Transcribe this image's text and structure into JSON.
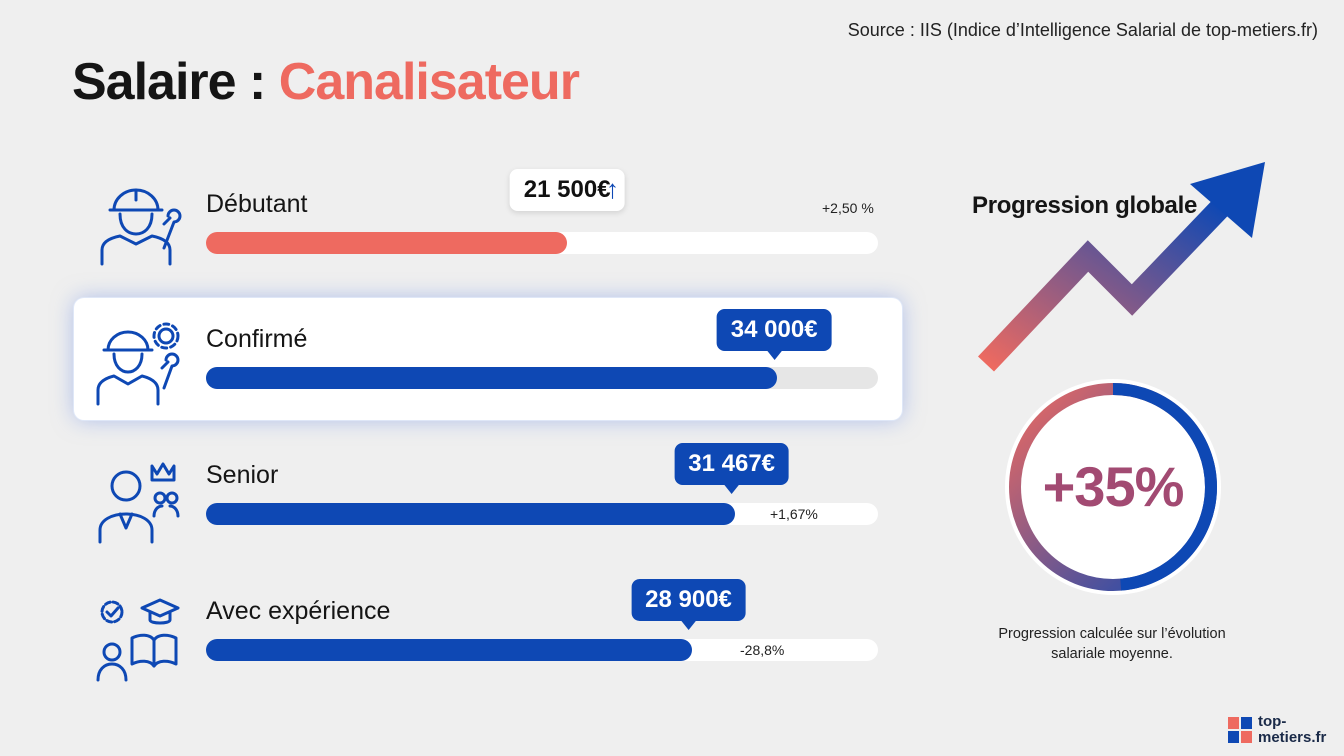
{
  "source": "Source : IIS (Indice d’Intelligence Salarial de top-metiers.fr)",
  "title": {
    "prefix": "Salaire : ",
    "accent": "Canalisateur"
  },
  "chart_data": {
    "type": "bar",
    "orientation": "horizontal",
    "categories": [
      "Débutant",
      "Confirmé",
      "Senior",
      "Avec expérience"
    ],
    "values": [
      21500,
      34000,
      31467,
      28900
    ],
    "value_labels": [
      "21 500€",
      "34 000€",
      "31 467€",
      "28 900€"
    ],
    "changes": [
      "+2,50 %",
      "",
      "+1,67%",
      "-28,8%"
    ],
    "bar_colors": [
      "#ee6a60",
      "#0e48b4",
      "#0e48b4",
      "#0e48b4"
    ],
    "xlim": [
      0,
      40000
    ],
    "highlighted": "Confirmé"
  },
  "rows": [
    {
      "label": "Débutant",
      "icon": "worker-wrench-icon"
    },
    {
      "label": "Confirmé",
      "icon": "worker-gear-icon"
    },
    {
      "label": "Senior",
      "icon": "senior-crown-icon"
    },
    {
      "label": "Avec expérience",
      "icon": "experience-book-icon"
    }
  ],
  "progression": {
    "title": "Progression globale",
    "value": "+35%",
    "percent": 35,
    "note": "Progression calculée sur l’évolution salariale moyenne.",
    "colors": {
      "start": "#ee6a60",
      "end": "#0e48b4"
    }
  },
  "logo": {
    "text": "top-metiers.fr"
  }
}
